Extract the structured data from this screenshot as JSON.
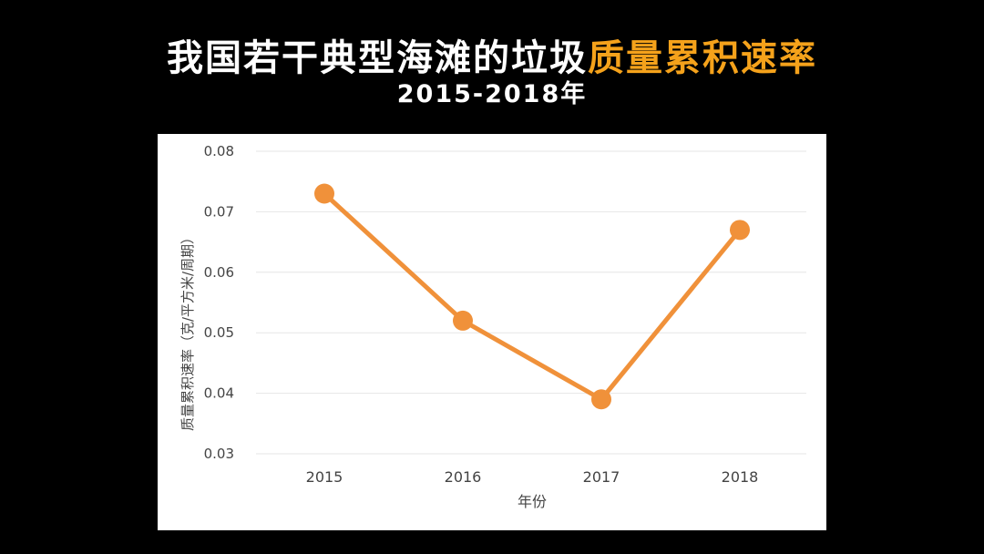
{
  "header": {
    "title_part1": "我国若干典型海滩的垃圾",
    "title_part2": "质量累积速率",
    "subtitle": "2015-2018年"
  },
  "colors": {
    "background": "#000000",
    "title_white": "#ffffff",
    "title_highlight": "#f5a21b",
    "series_line": "#f0913a",
    "gridline": "#e6e6e6",
    "axis_text": "#444444"
  },
  "chart_data": {
    "type": "line",
    "title": "",
    "xlabel": "年份",
    "ylabel": "质量累积速率（克/平方米/周期）",
    "categories": [
      "2015",
      "2016",
      "2017",
      "2018"
    ],
    "series": [
      {
        "values": [
          0.073,
          0.052,
          0.039,
          0.067
        ]
      }
    ],
    "ylim": [
      0.03,
      0.08
    ],
    "yticks": [
      "0.03",
      "0.04",
      "0.05",
      "0.06",
      "0.07",
      "0.08"
    ],
    "grid": true,
    "legend": "none"
  }
}
